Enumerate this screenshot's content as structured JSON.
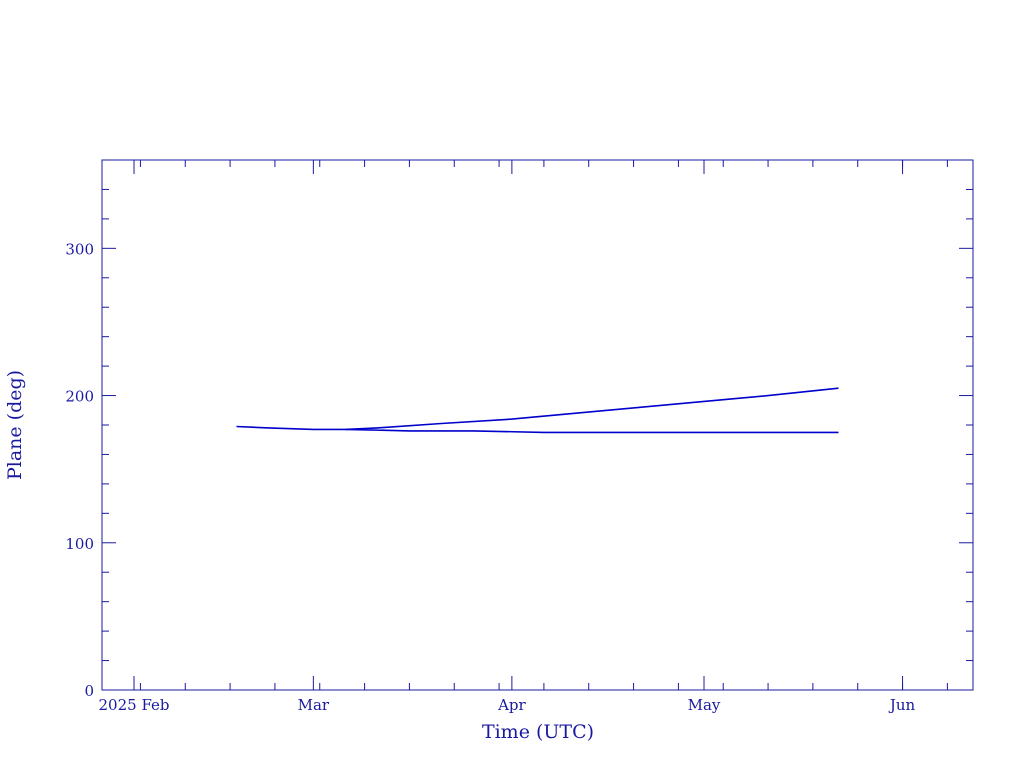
{
  "chart_data": {
    "type": "line",
    "title": "",
    "xlabel": "Time (UTC)",
    "ylabel": "Plane (deg)",
    "xlim": [
      "2025-01-27",
      "2025-06-12"
    ],
    "ylim": [
      0,
      360
    ],
    "x_ticks": [
      {
        "date": "2025-02-01",
        "label": "2025 Feb"
      },
      {
        "date": "2025-03-01",
        "label": "Mar"
      },
      {
        "date": "2025-04-01",
        "label": "Apr"
      },
      {
        "date": "2025-05-01",
        "label": "May"
      },
      {
        "date": "2025-06-01",
        "label": "Jun"
      }
    ],
    "y_ticks": [
      0,
      100,
      200,
      300
    ],
    "grid": false,
    "colors": {
      "axis": "#1a1aa0",
      "series": "#0000cc"
    },
    "series": [
      {
        "x": [
          "2025-02-17",
          "2025-02-22",
          "2025-03-01",
          "2025-03-06",
          "2025-03-11",
          "2025-03-21",
          "2025-04-01",
          "2025-04-11",
          "2025-04-21",
          "2025-05-01",
          "2025-05-11",
          "2025-05-22"
        ],
        "values": [
          179,
          178,
          177,
          177,
          178,
          181,
          184,
          188,
          192,
          196,
          200,
          205
        ]
      },
      {
        "x": [
          "2025-03-06",
          "2025-03-16",
          "2025-03-26",
          "2025-04-06",
          "2025-04-16",
          "2025-05-01",
          "2025-05-22"
        ],
        "values": [
          177,
          176,
          176,
          175,
          175,
          175,
          175
        ]
      }
    ]
  }
}
